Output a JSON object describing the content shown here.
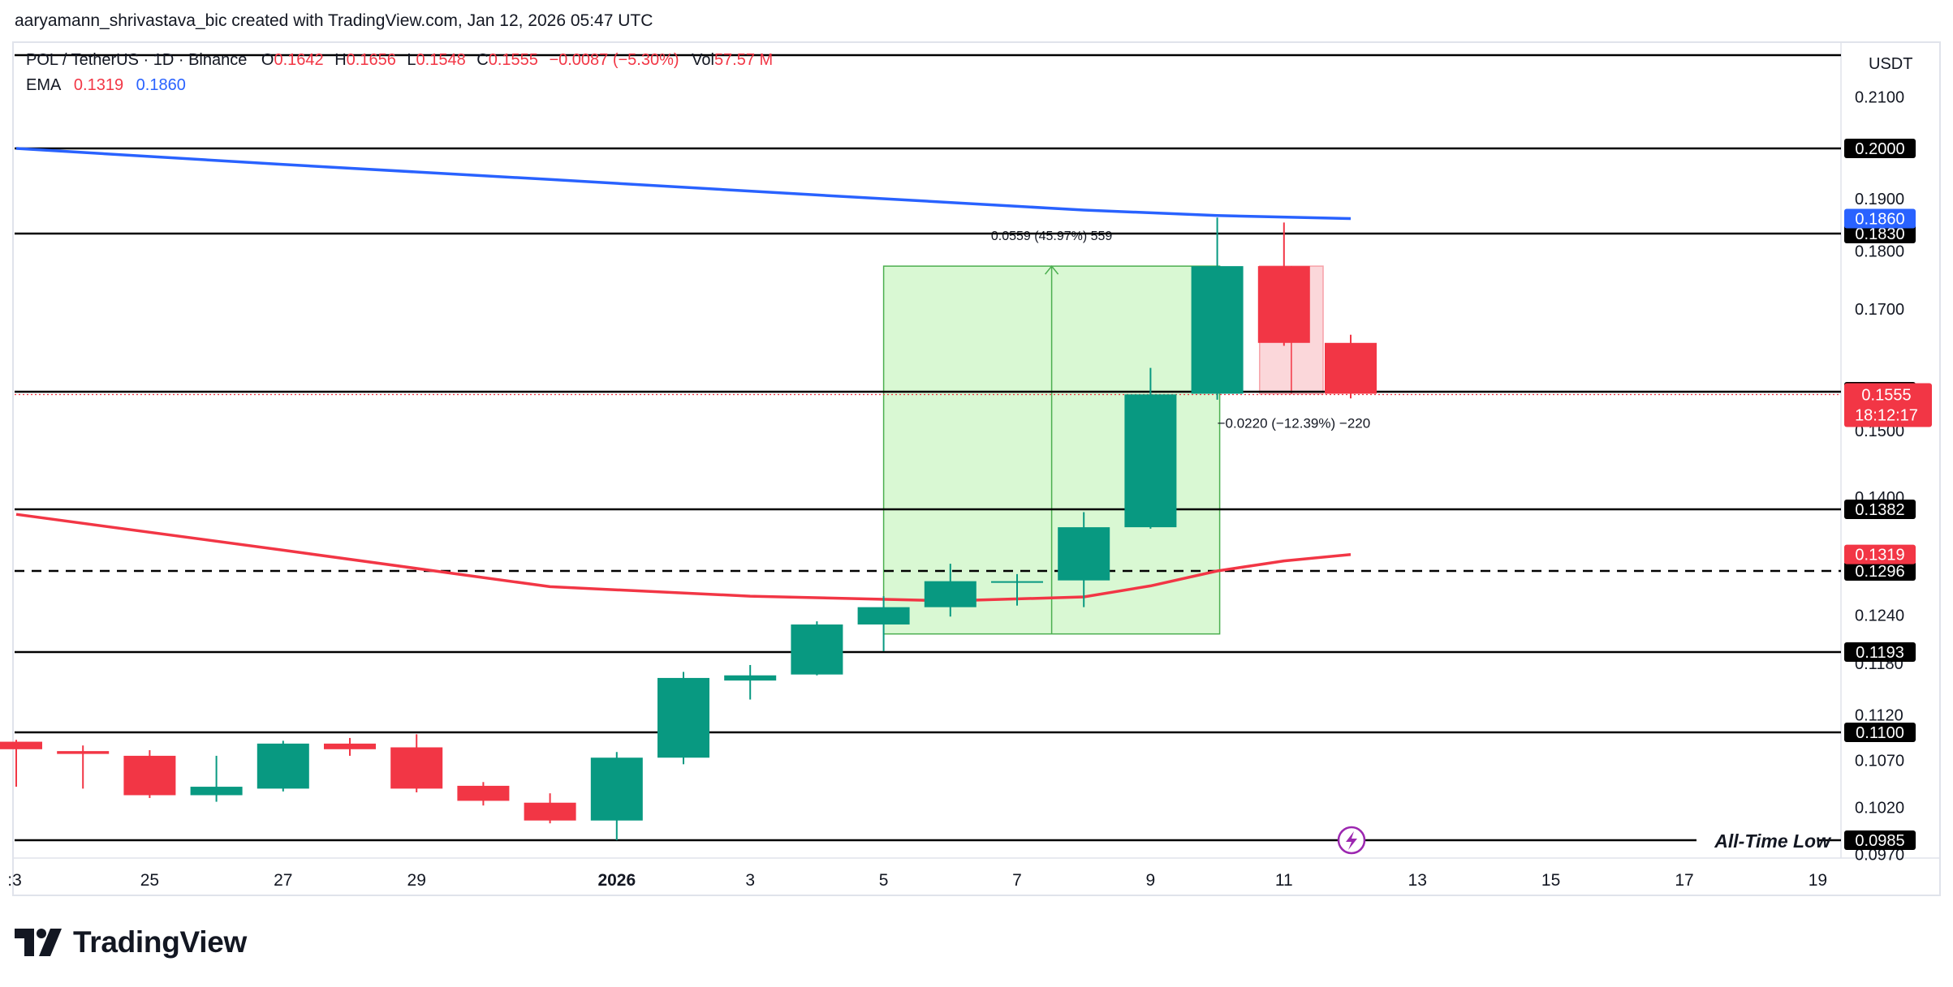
{
  "header": {
    "attribution": "aaryamann_shrivastava_bic created with TradingView.com, Jan 12, 2026 05:47 UTC"
  },
  "legend": {
    "symbol": "POL / TetherUS · 1D · Binance",
    "open_label": "O",
    "open": "0.1642",
    "high_label": "H",
    "high": "0.1656",
    "low_label": "L",
    "low": "0.1548",
    "close_label": "C",
    "close": "0.1555",
    "change": "−0.0087 (−5.30%)",
    "vol_label": "Vol",
    "vol": "57.57 M",
    "ema_label": "EMA",
    "ema_fast": "0.1319",
    "ema_slow": "0.1860"
  },
  "footer": {
    "brand": "TradingView"
  },
  "colors": {
    "up": "#089981",
    "down": "#f23645",
    "ema_slow": "#2962ff",
    "ema_fast": "#f23645",
    "measure_fill": "#ccf5c4",
    "measure_line": "#4caf50",
    "label_bg": "#000000"
  },
  "chart_data": {
    "type": "candlestick",
    "currency": "USDT",
    "x_tick_labels": [
      ":3",
      "25",
      "27",
      "29",
      "2026",
      "3",
      "5",
      "7",
      "9",
      "11",
      "13",
      "15",
      "17",
      "19"
    ],
    "y_tick_labels": [
      "0.2100",
      "0.1900",
      "0.1800",
      "0.1700",
      "0.1500",
      "0.1400",
      "0.1240",
      "0.1180",
      "0.1120",
      "0.1070",
      "0.1020",
      "0.0970"
    ],
    "candles": [
      {
        "date": "2025-12-23",
        "o": 0.109,
        "h": 0.1092,
        "l": 0.1042,
        "c": 0.1082
      },
      {
        "date": "2025-12-24",
        "o": 0.108,
        "h": 0.1086,
        "l": 0.104,
        "c": 0.1077
      },
      {
        "date": "2025-12-25",
        "o": 0.1075,
        "h": 0.1081,
        "l": 0.103,
        "c": 0.1033
      },
      {
        "date": "2025-12-26",
        "o": 0.1033,
        "h": 0.1075,
        "l": 0.1026,
        "c": 0.1042
      },
      {
        "date": "2025-12-27",
        "o": 0.104,
        "h": 0.1091,
        "l": 0.1037,
        "c": 0.1088
      },
      {
        "date": "2025-12-28",
        "o": 0.1088,
        "h": 0.1094,
        "l": 0.1075,
        "c": 0.1082
      },
      {
        "date": "2025-12-29",
        "o": 0.1084,
        "h": 0.1098,
        "l": 0.1036,
        "c": 0.104
      },
      {
        "date": "2025-12-30",
        "o": 0.1043,
        "h": 0.1047,
        "l": 0.1022,
        "c": 0.1027
      },
      {
        "date": "2025-12-31",
        "o": 0.1025,
        "h": 0.1035,
        "l": 0.1003,
        "c": 0.1006
      },
      {
        "date": "2026-01-01",
        "o": 0.1006,
        "h": 0.1079,
        "l": 0.0985,
        "c": 0.1073
      },
      {
        "date": "2026-01-02",
        "o": 0.1073,
        "h": 0.117,
        "l": 0.1066,
        "c": 0.1163
      },
      {
        "date": "2026-01-03",
        "o": 0.116,
        "h": 0.1178,
        "l": 0.1138,
        "c": 0.1166
      },
      {
        "date": "2026-01-04",
        "o": 0.1167,
        "h": 0.1232,
        "l": 0.1166,
        "c": 0.1228
      },
      {
        "date": "2026-01-05",
        "o": 0.1228,
        "h": 0.1264,
        "l": 0.1194,
        "c": 0.125
      },
      {
        "date": "2026-01-06",
        "o": 0.125,
        "h": 0.1306,
        "l": 0.1238,
        "c": 0.1283
      },
      {
        "date": "2026-01-07",
        "o": 0.1283,
        "h": 0.1292,
        "l": 0.1252,
        "c": 0.1283
      },
      {
        "date": "2026-01-08",
        "o": 0.1284,
        "h": 0.1378,
        "l": 0.125,
        "c": 0.1357
      },
      {
        "date": "2026-01-09",
        "o": 0.1357,
        "h": 0.1599,
        "l": 0.1355,
        "c": 0.1554
      },
      {
        "date": "2026-01-10",
        "o": 0.1555,
        "h": 0.1862,
        "l": 0.1546,
        "c": 0.1774
      },
      {
        "date": "2026-01-11",
        "o": 0.1774,
        "h": 0.1852,
        "l": 0.1637,
        "c": 0.1642
      },
      {
        "date": "2026-01-12",
        "o": 0.1642,
        "h": 0.1656,
        "l": 0.1548,
        "c": 0.1555
      }
    ],
    "ema_slow": {
      "label": "0.1860",
      "values": [
        {
          "date": "2025-12-23",
          "v": 0.2
        },
        {
          "date": "2025-12-27",
          "v": 0.1968
        },
        {
          "date": "2025-12-31",
          "v": 0.1938
        },
        {
          "date": "2026-01-04",
          "v": 0.1907
        },
        {
          "date": "2026-01-08",
          "v": 0.1877
        },
        {
          "date": "2026-01-10",
          "v": 0.1866
        },
        {
          "date": "2026-01-12",
          "v": 0.186
        }
      ]
    },
    "ema_fast": {
      "label": "0.1319",
      "values": [
        {
          "date": "2025-12-23",
          "v": 0.1375
        },
        {
          "date": "2025-12-27",
          "v": 0.1325
        },
        {
          "date": "2025-12-31",
          "v": 0.1276
        },
        {
          "date": "2026-01-03",
          "v": 0.1264
        },
        {
          "date": "2026-01-06",
          "v": 0.1258
        },
        {
          "date": "2026-01-08",
          "v": 0.1263
        },
        {
          "date": "2026-01-09",
          "v": 0.1277
        },
        {
          "date": "2026-01-10",
          "v": 0.1296
        },
        {
          "date": "2026-01-11",
          "v": 0.131
        },
        {
          "date": "2026-01-12",
          "v": 0.1319
        }
      ]
    },
    "horizontal_levels": [
      {
        "value": 0.2,
        "label": "0.2000",
        "style": "solid"
      },
      {
        "value": 0.183,
        "label": "0.1830",
        "style": "solid"
      },
      {
        "value": 0.1558,
        "label": "0.1558",
        "style": "solid"
      },
      {
        "value": 0.1382,
        "label": "0.1382",
        "style": "solid"
      },
      {
        "value": 0.1296,
        "label": "0.1296",
        "style": "dashed"
      },
      {
        "value": 0.1193,
        "label": "0.1193",
        "style": "solid"
      },
      {
        "value": 0.11,
        "label": "0.1100",
        "style": "solid"
      },
      {
        "value": 0.0985,
        "label": "0.0985",
        "style": "solid",
        "annotation": "All-Time Low"
      }
    ],
    "current_price": {
      "label": "0.1555",
      "countdown": "18:12:17"
    },
    "measurements": [
      {
        "from_date": "2026-01-05",
        "to_date": "2026-01-10",
        "from_price": 0.1216,
        "to_price": 0.1774,
        "label": "0.0559 (45.97%) 559",
        "direction": "up"
      },
      {
        "from_date": "2026-01-11",
        "to_date": "2026-01-12",
        "from_price": 0.1774,
        "to_price": 0.1555,
        "label": "−0.0220 (−12.39%) −220",
        "direction": "down"
      }
    ],
    "top_line_value": 0.2181,
    "ylim": [
      0.0985,
      0.2181
    ],
    "xlim": [
      "2025-12-23",
      "2026-01-19"
    ]
  }
}
